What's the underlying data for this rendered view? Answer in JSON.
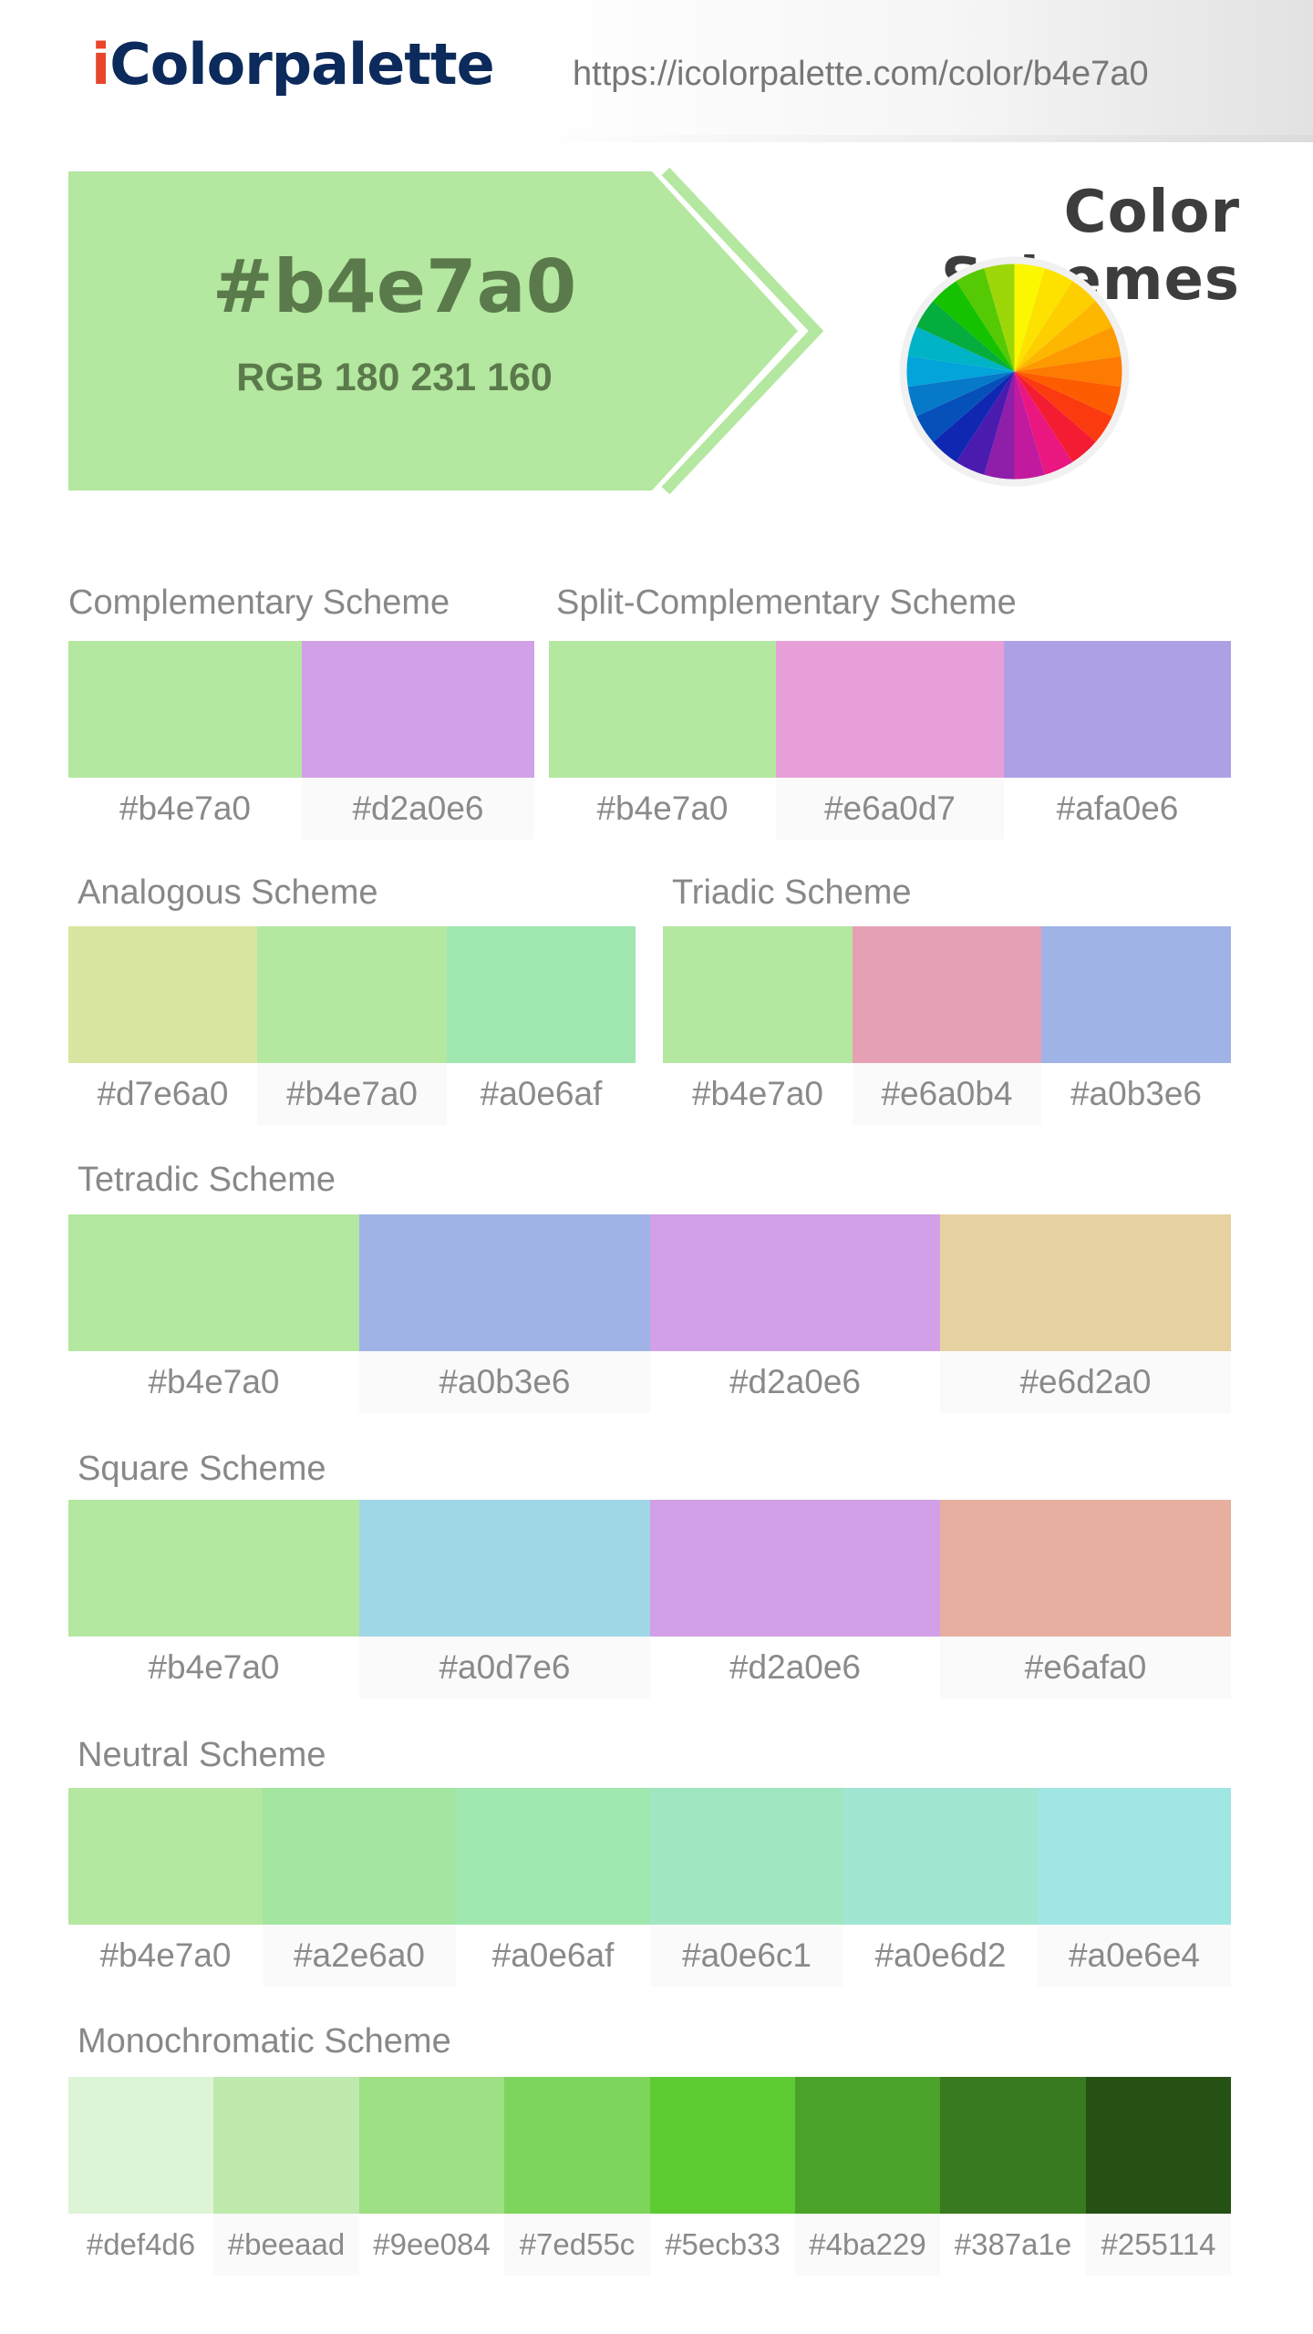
{
  "header": {
    "logo_first": "i",
    "logo_rest": "Colorpalette",
    "url": "https://icolorpalette.com/color/b4e7a0"
  },
  "hero": {
    "hex": "#b4e7a0",
    "rgb": "RGB 180 231 160",
    "color": "#b4e7a0",
    "text_color": "#5b7a4b"
  },
  "section_title": "Color Schemes",
  "color_wheel": {
    "icon": "color-wheel-icon",
    "colors": [
      "#fbf700",
      "#fde200",
      "#fdcf00",
      "#fdb700",
      "#fd9a00",
      "#fd7b00",
      "#fd5c00",
      "#fc3a10",
      "#f41c32",
      "#ea1780",
      "#c21a9e",
      "#8f1ea8",
      "#4b1bb0",
      "#0f27b1",
      "#0650ba",
      "#0679c9",
      "#03a4d9",
      "#00b3c6",
      "#05ad3e",
      "#14c200",
      "#56c905",
      "#9dd708"
    ]
  },
  "schemes": [
    {
      "name": "Complementary Scheme",
      "colors": [
        {
          "hex": "#b4e7a0",
          "color": "#b4e7a0"
        },
        {
          "hex": "#d2a0e6",
          "color": "#d2a0e6"
        }
      ]
    },
    {
      "name": "Split-Complementary Scheme",
      "colors": [
        {
          "hex": "#b4e7a0",
          "color": "#b4e7a0"
        },
        {
          "hex": "#e6a0d7",
          "color": "#e6a0d7"
        },
        {
          "hex": "#afa0e6",
          "color": "#afa0e6"
        }
      ]
    },
    {
      "name": "Analogous Scheme",
      "colors": [
        {
          "hex": "#d7e6a0",
          "color": "#d7e6a0"
        },
        {
          "hex": "#b4e7a0",
          "color": "#b4e7a0"
        },
        {
          "hex": "#a0e6af",
          "color": "#a0e6af"
        }
      ]
    },
    {
      "name": "Triadic Scheme",
      "colors": [
        {
          "hex": "#b4e7a0",
          "color": "#b4e7a0"
        },
        {
          "hex": "#e6a0b4",
          "color": "#e6a0b4"
        },
        {
          "hex": "#a0b3e6",
          "color": "#a0b3e6"
        }
      ]
    },
    {
      "name": "Tetradic Scheme",
      "colors": [
        {
          "hex": "#b4e7a0",
          "color": "#b4e7a0"
        },
        {
          "hex": "#a0b3e6",
          "color": "#a0b3e6"
        },
        {
          "hex": "#d2a0e6",
          "color": "#d2a0e6"
        },
        {
          "hex": "#e6d2a0",
          "color": "#e6d2a0"
        }
      ]
    },
    {
      "name": "Square Scheme",
      "colors": [
        {
          "hex": "#b4e7a0",
          "color": "#b4e7a0"
        },
        {
          "hex": "#a0d7e6",
          "color": "#a0d7e6"
        },
        {
          "hex": "#d2a0e6",
          "color": "#d2a0e6"
        },
        {
          "hex": "#e6afa0",
          "color": "#e6afa0"
        }
      ]
    },
    {
      "name": "Neutral Scheme",
      "colors": [
        {
          "hex": "#b4e7a0",
          "color": "#b4e7a0"
        },
        {
          "hex": "#a2e6a0",
          "color": "#a2e6a0"
        },
        {
          "hex": "#a0e6af",
          "color": "#a0e6af"
        },
        {
          "hex": "#a0e6c1",
          "color": "#a0e6c1"
        },
        {
          "hex": "#a0e6d2",
          "color": "#a0e6d2"
        },
        {
          "hex": "#a0e6e4",
          "color": "#a0e6e4"
        }
      ]
    },
    {
      "name": "Monochromatic Scheme",
      "colors": [
        {
          "hex": "#def4d6",
          "color": "#def4d6"
        },
        {
          "hex": "#beeaad",
          "color": "#beeaad"
        },
        {
          "hex": "#9ee084",
          "color": "#9ee084"
        },
        {
          "hex": "#7ed55c",
          "color": "#7ed55c"
        },
        {
          "hex": "#5ecb33",
          "color": "#5ecb33"
        },
        {
          "hex": "#4ba229",
          "color": "#4ba229"
        },
        {
          "hex": "#387a1e",
          "color": "#387a1e"
        },
        {
          "hex": "#255114",
          "color": "#255114"
        }
      ]
    }
  ]
}
